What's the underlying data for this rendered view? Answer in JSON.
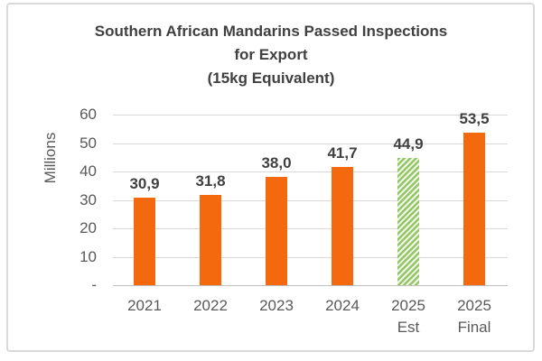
{
  "chart_data": {
    "type": "bar",
    "title_lines": [
      "Southern African Mandarins Passed Inspections",
      "for Export",
      "(15kg Equivalent)"
    ],
    "ylabel": "Millions",
    "xlabel": "",
    "categories": [
      "2021",
      "2022",
      "2023",
      "2024",
      "2025 Est",
      "2025 Final"
    ],
    "category_lines": [
      [
        "2021"
      ],
      [
        "2022"
      ],
      [
        "2023"
      ],
      [
        "2024"
      ],
      [
        "2025",
        "Est"
      ],
      [
        "2025",
        "Final"
      ]
    ],
    "values": [
      30.9,
      31.8,
      38.0,
      41.7,
      44.9,
      53.5
    ],
    "value_labels": [
      "30,9",
      "31,8",
      "38,0",
      "41,7",
      "44,9",
      "53,5"
    ],
    "bar_styles": [
      "solid",
      "solid",
      "solid",
      "solid",
      "hatched",
      "solid"
    ],
    "y_ticks": [
      {
        "value": 60,
        "label": "60"
      },
      {
        "value": 50,
        "label": "50"
      },
      {
        "value": 40,
        "label": "40"
      },
      {
        "value": 30,
        "label": "30"
      },
      {
        "value": 20,
        "label": "20"
      },
      {
        "value": 10,
        "label": "10"
      },
      {
        "value": 0,
        "label": "-"
      }
    ],
    "ylim": [
      0,
      60
    ],
    "grid": true,
    "legend": "none",
    "colors": {
      "bar_solid": "#F4690D",
      "bar_hatch_green": "#94C567",
      "gridline": "#D9D9D9",
      "axis_line": "#BFBFBF",
      "title_text": "#404040",
      "tick_text": "#595959",
      "data_label_text": "#404040",
      "frame_border": "#D9D9D9"
    }
  }
}
